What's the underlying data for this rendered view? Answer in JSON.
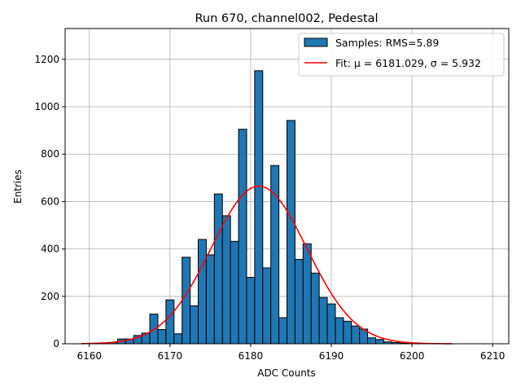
{
  "chart_data": {
    "type": "bar",
    "title": "Run 670, channel002, Pedestal",
    "xlabel": "ADC Counts",
    "ylabel": "Entries",
    "xlim": [
      6157,
      6212
    ],
    "ylim": [
      0,
      1330
    ],
    "xticks": [
      6160,
      6170,
      6180,
      6190,
      6200,
      6210
    ],
    "yticks": [
      0,
      200,
      400,
      600,
      800,
      1000,
      1200
    ],
    "grid": true,
    "legend_position": "top-right",
    "bin_width": 1,
    "series": [
      {
        "name": "Samples: RMS=5.89",
        "kind": "histogram",
        "color": "#1f77b4",
        "edge_color": "#000000",
        "bins": [
          {
            "x": 6162,
            "value": 2
          },
          {
            "x": 6163,
            "value": 5
          },
          {
            "x": 6164,
            "value": 20
          },
          {
            "x": 6165,
            "value": 20
          },
          {
            "x": 6166,
            "value": 35
          },
          {
            "x": 6167,
            "value": 45
          },
          {
            "x": 6168,
            "value": 125
          },
          {
            "x": 6169,
            "value": 60
          },
          {
            "x": 6170,
            "value": 185
          },
          {
            "x": 6171,
            "value": 42
          },
          {
            "x": 6172,
            "value": 365
          },
          {
            "x": 6173,
            "value": 160
          },
          {
            "x": 6174,
            "value": 440
          },
          {
            "x": 6175,
            "value": 375
          },
          {
            "x": 6176,
            "value": 632
          },
          {
            "x": 6177,
            "value": 540
          },
          {
            "x": 6178,
            "value": 432
          },
          {
            "x": 6179,
            "value": 905
          },
          {
            "x": 6180,
            "value": 280
          },
          {
            "x": 6181,
            "value": 1152
          },
          {
            "x": 6182,
            "value": 320
          },
          {
            "x": 6183,
            "value": 752
          },
          {
            "x": 6184,
            "value": 110
          },
          {
            "x": 6185,
            "value": 942
          },
          {
            "x": 6186,
            "value": 356
          },
          {
            "x": 6187,
            "value": 422
          },
          {
            "x": 6188,
            "value": 298
          },
          {
            "x": 6189,
            "value": 195
          },
          {
            "x": 6190,
            "value": 168
          },
          {
            "x": 6191,
            "value": 110
          },
          {
            "x": 6192,
            "value": 95
          },
          {
            "x": 6193,
            "value": 75
          },
          {
            "x": 6194,
            "value": 62
          },
          {
            "x": 6195,
            "value": 25
          },
          {
            "x": 6196,
            "value": 18
          },
          {
            "x": 6197,
            "value": 8
          },
          {
            "x": 6198,
            "value": 5
          },
          {
            "x": 6199,
            "value": 3
          },
          {
            "x": 6200,
            "value": 2
          }
        ]
      },
      {
        "name": "Fit: μ = 6181.029, σ = 5.932",
        "kind": "gaussian_fit",
        "color": "#ff0000",
        "mu": 6181.029,
        "sigma": 5.932,
        "amplitude": 665,
        "x_range": [
          6159,
          6205
        ]
      }
    ]
  }
}
